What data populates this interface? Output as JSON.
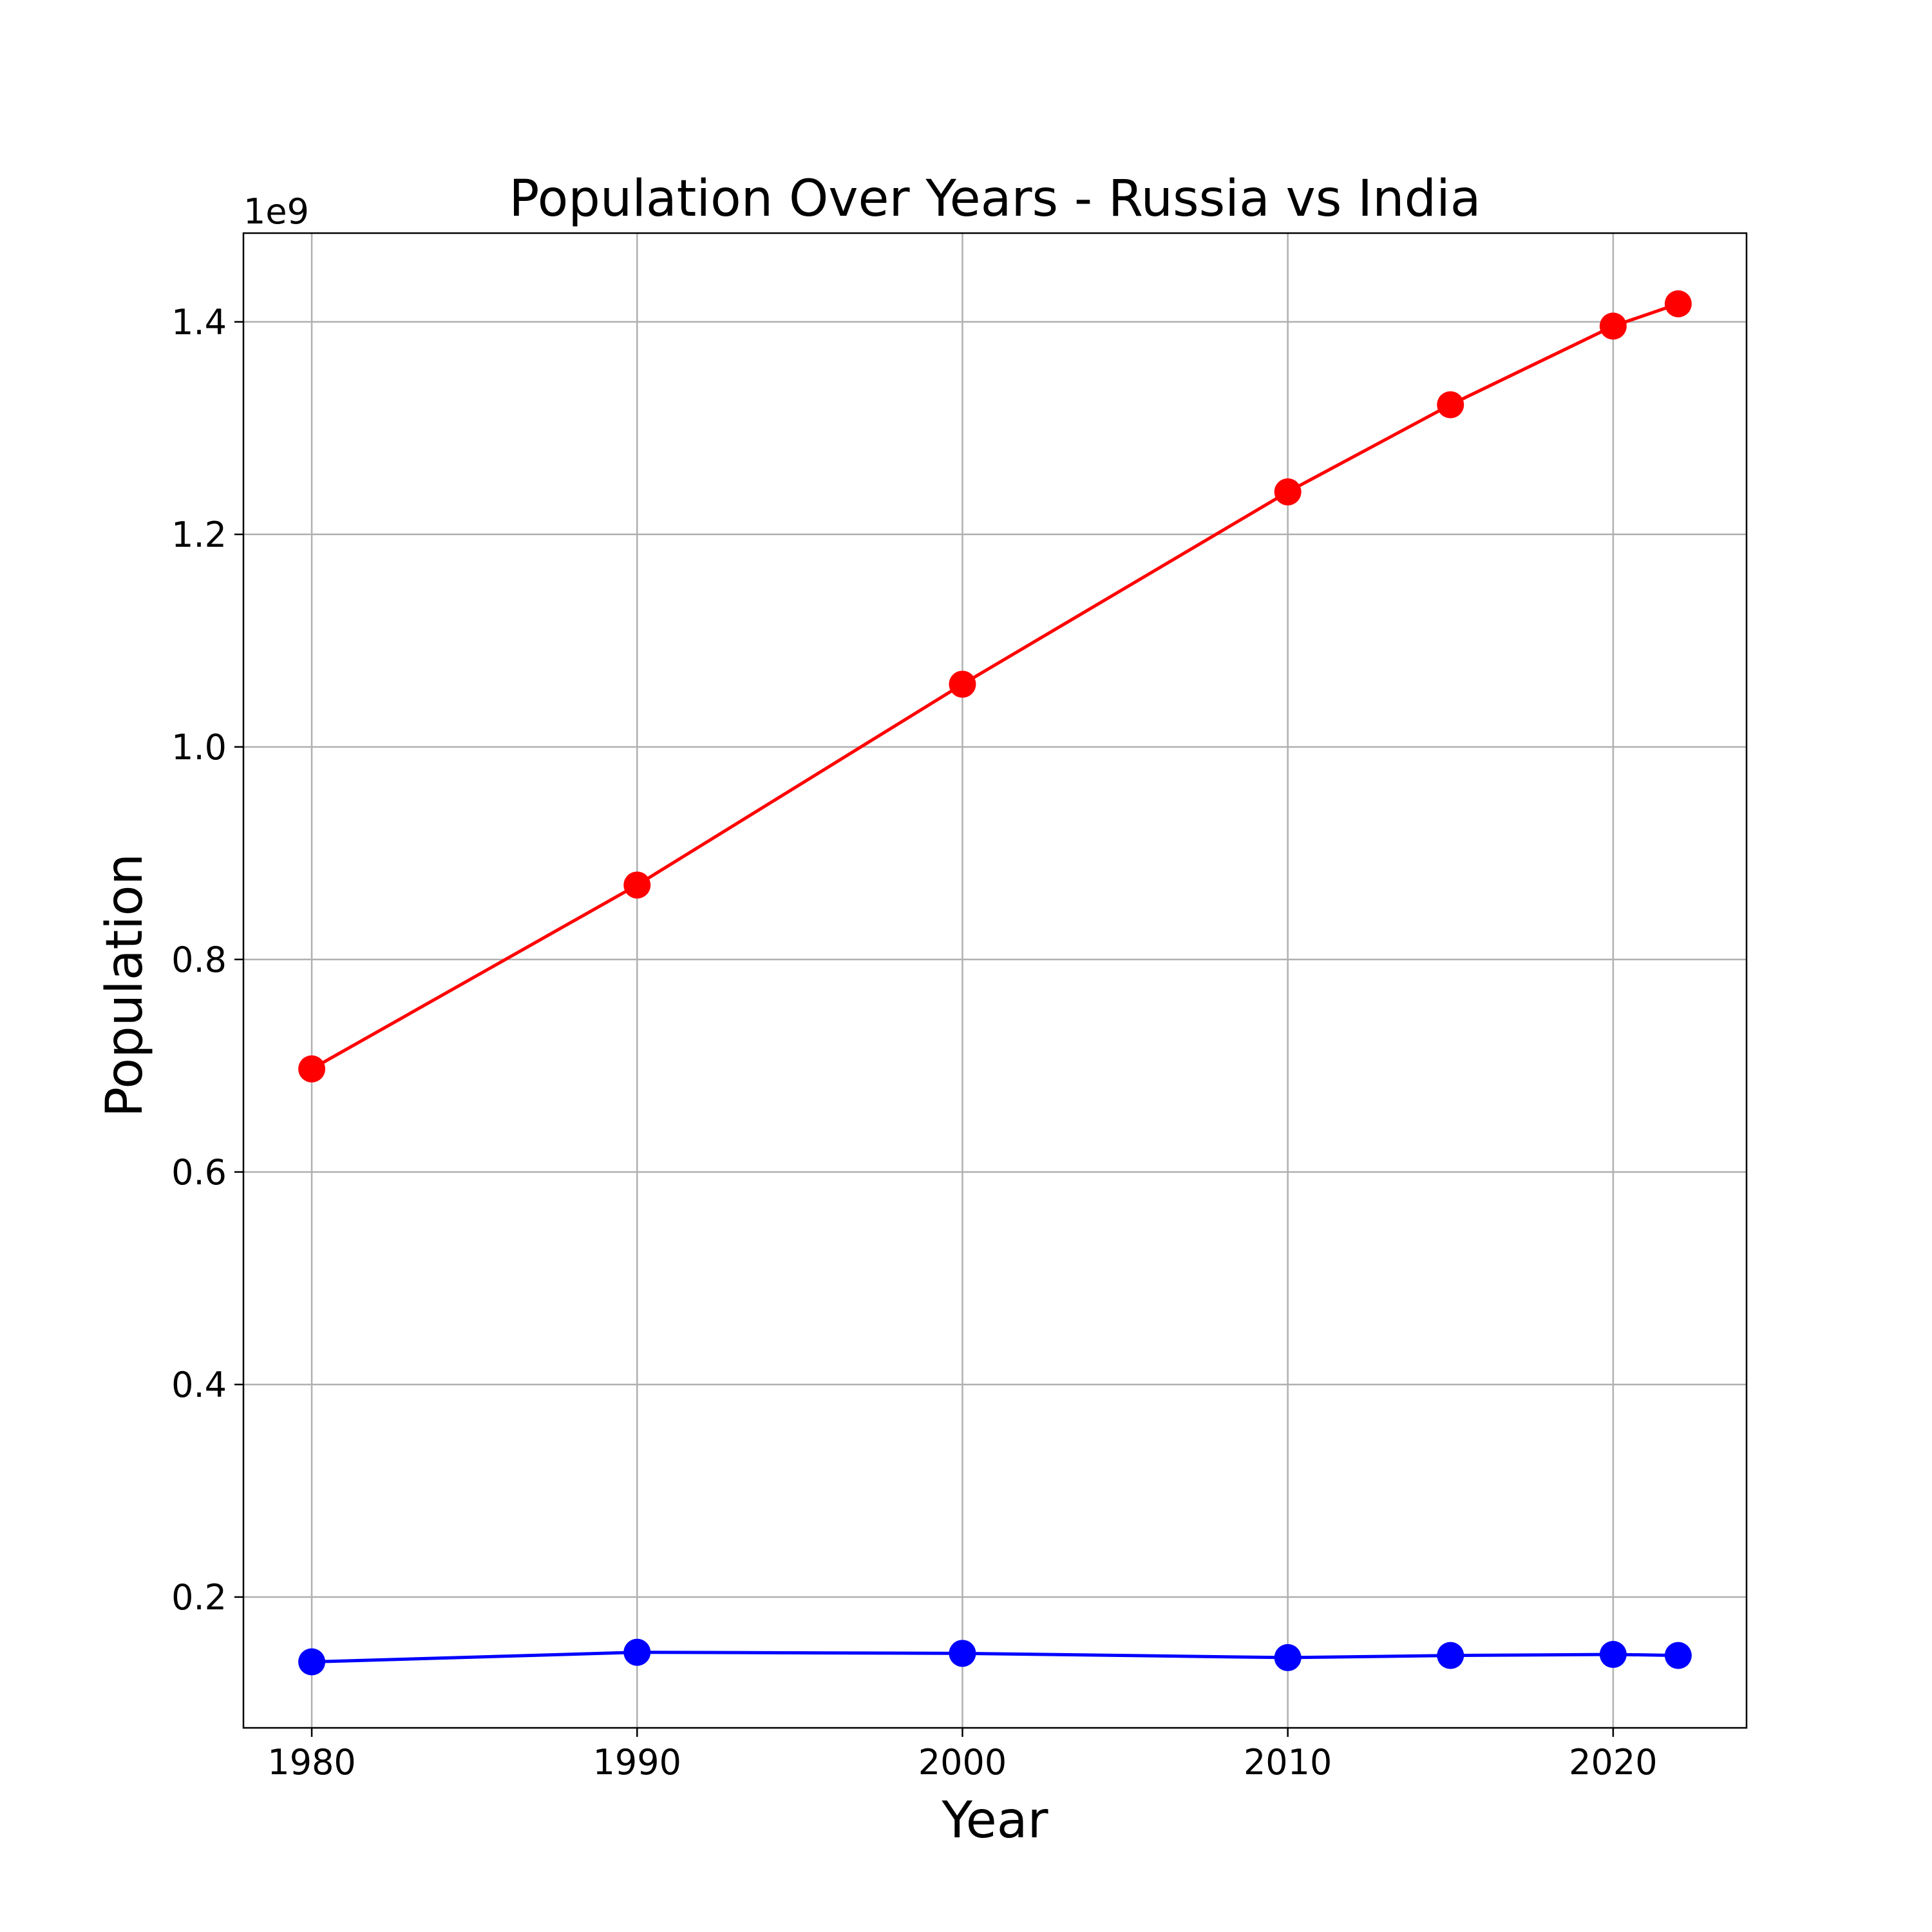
{
  "chart_data": {
    "type": "line",
    "title": "Population Over Years - Russia vs India",
    "xlabel": "Year",
    "ylabel": "Population",
    "y_offset_label": "1e9",
    "xlim": [
      1977.9,
      2024.1
    ],
    "ylim": [
      0.0769,
      1.4835
    ],
    "y_scale": 1000000000,
    "grid": true,
    "legend": false,
    "x_ticks": [
      1980,
      1990,
      2000,
      2010,
      2020
    ],
    "x_tick_labels": [
      "1980",
      "1990",
      "2000",
      "2010",
      "2020"
    ],
    "y_ticks": [
      0.2,
      0.4,
      0.6,
      0.8,
      1.0,
      1.2,
      1.4
    ],
    "y_tick_labels": [
      "0.2",
      "0.4",
      "0.6",
      "0.8",
      "1.0",
      "1.2",
      "1.4"
    ],
    "x": [
      1980,
      1990,
      2000,
      2010,
      2015,
      2020,
      2022
    ],
    "series": [
      {
        "color": "#ff0000",
        "marker": "circle",
        "values": [
          697000000,
          870000000,
          1059000000,
          1240000000,
          1322000000,
          1396000000,
          1417000000
        ]
      },
      {
        "color": "#0000ff",
        "marker": "circle",
        "values": [
          139000000,
          148000000,
          147000000,
          143000000,
          145000000,
          146000000,
          145000000
        ]
      }
    ]
  }
}
